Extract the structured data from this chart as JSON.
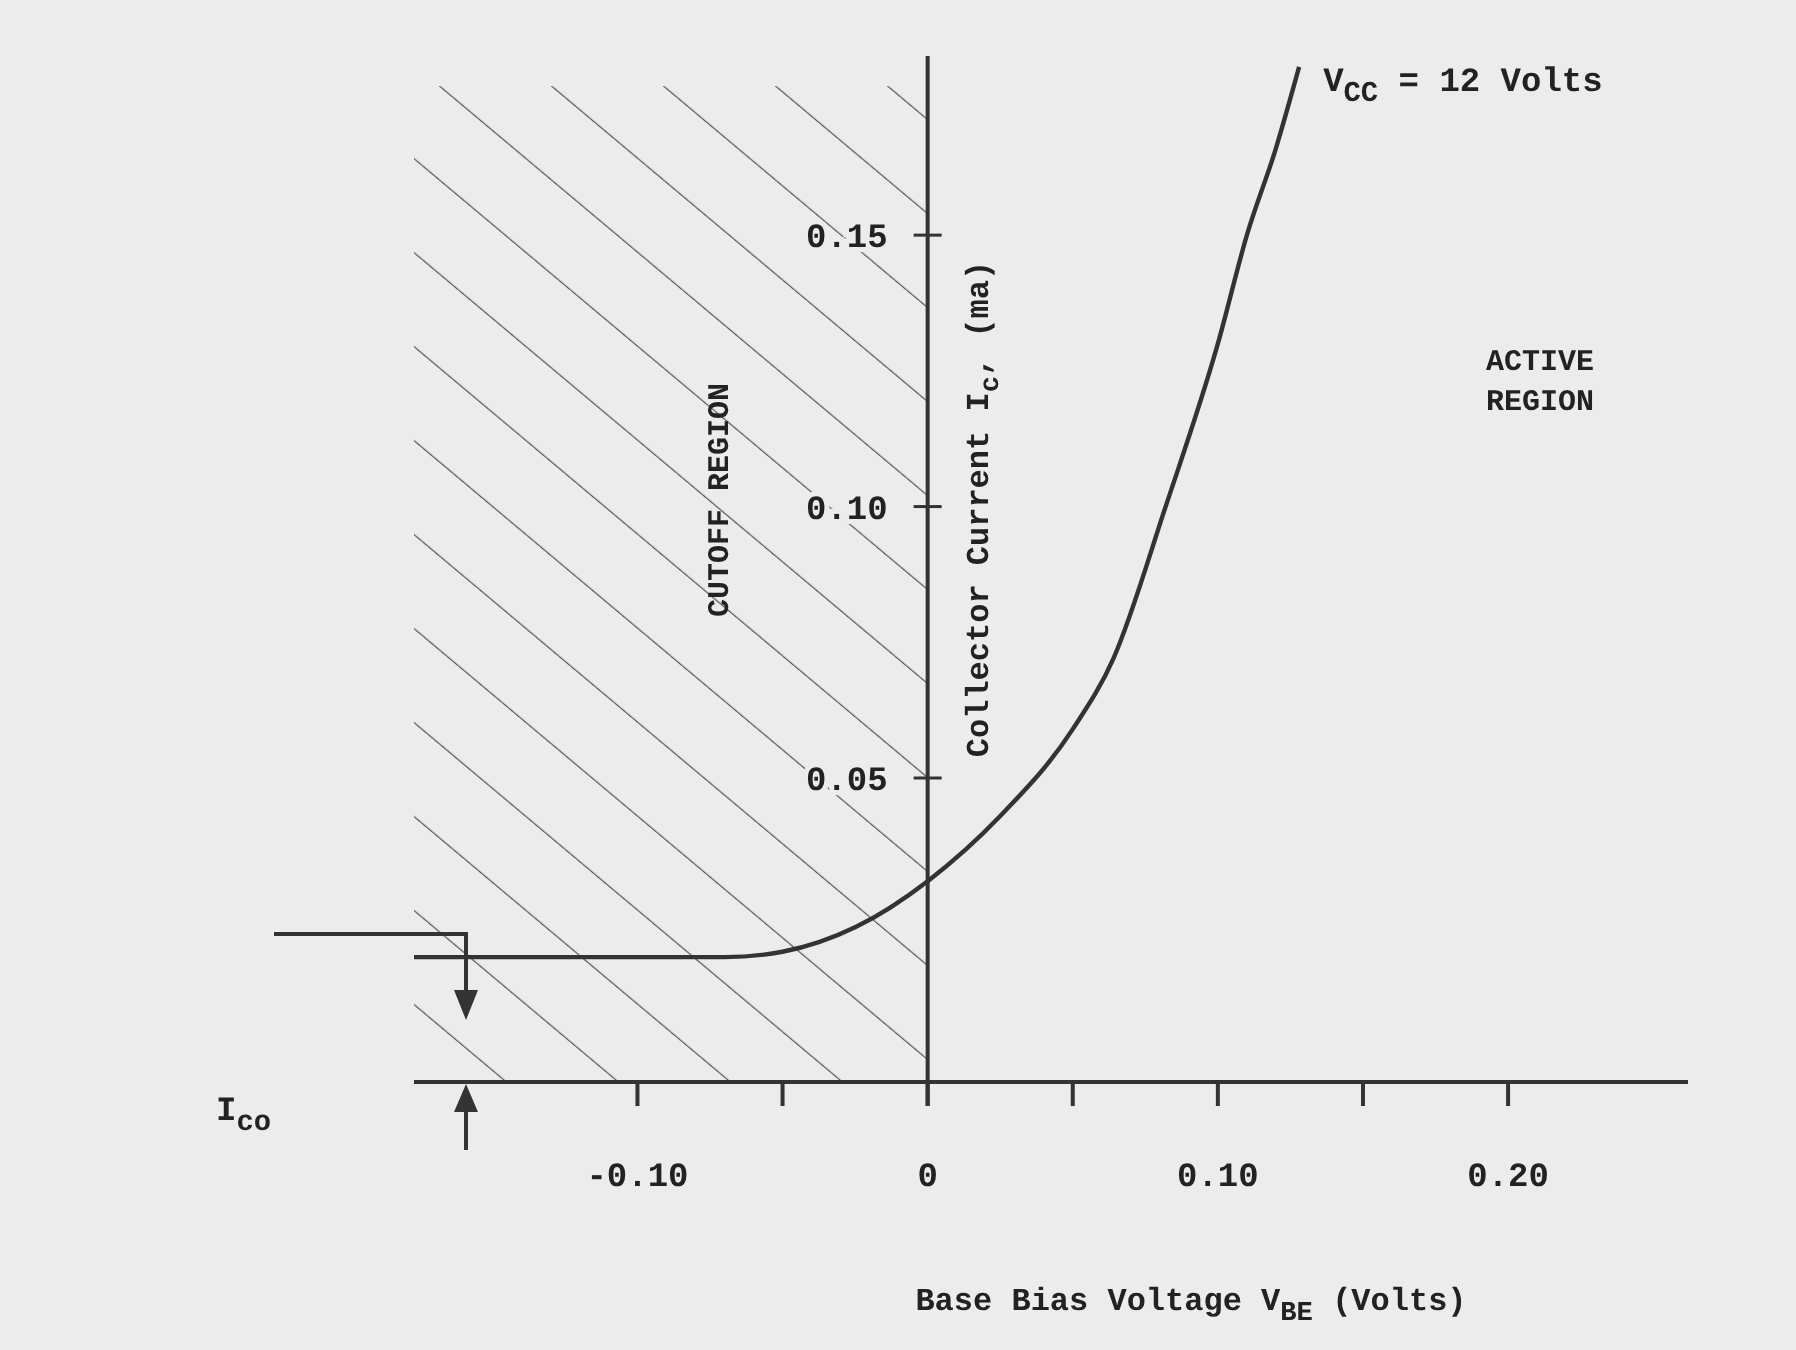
{
  "chart_data": {
    "type": "line",
    "xlabel": "Base Bias Voltage V$_{BE}$ (Volts)",
    "ylabel": "Collector Current I$_{c}$, (ma)",
    "xlim": [
      -0.177,
      0.262
    ],
    "ylim": [
      -0.006,
      0.183
    ],
    "xticks": [
      {
        "value": -0.1,
        "label": "-0.10"
      },
      {
        "value": -0.05,
        "label": null
      },
      0,
      {
        "value": 0.05,
        "label": null
      },
      {
        "value": 0.1,
        "label": "0.10"
      },
      {
        "value": 0.15,
        "label": null
      },
      {
        "value": 0.2,
        "label": "0.20"
      }
    ],
    "yticks": [
      0.05,
      {
        "value": 0.1,
        "label": "0.10"
      },
      0.15
    ],
    "series": [
      {
        "color": "#333333",
        "x": [
          -0.177,
          -0.1,
          -0.07,
          -0.05,
          -0.025,
          0,
          0.025,
          0.05,
          0.064,
          0.082,
          0.1,
          0.11,
          0.12,
          0.128
        ],
        "values": [
          0.017,
          0.017,
          0.017,
          0.018,
          0.0225,
          0.031,
          0.043,
          0.059,
          0.072,
          0.1,
          0.13,
          0.15,
          0.166,
          0.181
        ]
      }
    ],
    "bands": [
      {
        "axis": "x",
        "from": -0.177,
        "to": 0,
        "label": "CUTOFF REGION",
        "color": "#555555"
      }
    ],
    "annotations": [
      {
        "text": "V$_{CC}$ = 12 Volts",
        "x": 0.128,
        "y": 0.181
      },
      "ACTIVE\nREGION",
      "I$_{co}$"
    ],
    "marker": "none",
    "line_style": "solid"
  }
}
